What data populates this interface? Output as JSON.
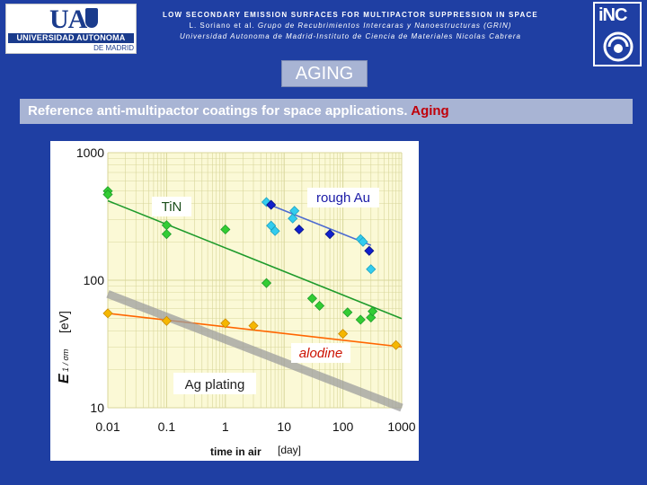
{
  "header": {
    "title_line": "LOW SECONDARY EMISSION SURFACES FOR MULTIPACTOR SUPPRESSION IN SPACE",
    "authors_plain": "L. Soriano et al.",
    "authors_italic": "Grupo de Recubrimientos Intercaras y Nanoestructuras (GRIN)",
    "institutions": "Universidad Autonoma de Madrid-Instituto de Ciencia de Materiales Nicolas Cabrera"
  },
  "logos": {
    "ua_mark": "UA",
    "ua_name": "UNIVERSIDAD AUTONOMA",
    "ua_city": "DE MADRID",
    "inc_mark": "iNC"
  },
  "section_title": "AGING",
  "subtitle": {
    "main": "Reference anti-multipactor coatings for space applications.",
    "accent": "Aging"
  },
  "colors": {
    "background": "#1f3fa3",
    "plot_background": "#fbf9d6",
    "grid": "#d8d69a",
    "tin": "#1f9b2c",
    "tin_marker": "#33cc33",
    "au_marker_light": "#33ccee",
    "au_marker_dark": "#1020cc",
    "au_line": "#4d6bd1",
    "alodine_line": "#ff6600",
    "alodine_marker": "#f5b700",
    "ag_band": "#9e9e9e",
    "alodine_label": "#cc1100",
    "au_label": "#1a1aa6"
  },
  "chart_data": {
    "type": "scatter",
    "x_scale": "log",
    "y_scale": "log",
    "xlim": [
      0.01,
      1000
    ],
    "ylim": [
      10,
      1000
    ],
    "x_ticks": [
      "0.01",
      "0.1",
      "1",
      "10",
      "100",
      "1000"
    ],
    "y_ticks": [
      "10",
      "100",
      "1000"
    ],
    "xlabel": "time in air",
    "xunit": "[day]",
    "ylabel_symbol": "E",
    "ylabel_sub": "1 / σm",
    "ylabel_unit": "[eV]",
    "grid": true,
    "series": [
      {
        "name": "TiN",
        "marker": "diamond",
        "points": [
          [
            0.01,
            500
          ],
          [
            0.01,
            470
          ],
          [
            0.1,
            270
          ],
          [
            0.1,
            230
          ],
          [
            1,
            250
          ],
          [
            5,
            95
          ],
          [
            30,
            72
          ],
          [
            40,
            63
          ],
          [
            120,
            56
          ],
          [
            300,
            51
          ],
          [
            320,
            57
          ],
          [
            200,
            49
          ]
        ],
        "trend": [
          [
            0.01,
            420
          ],
          [
            1000,
            50
          ]
        ]
      },
      {
        "name": "rough Au",
        "marker": "diamond",
        "points": [
          [
            5,
            410
          ],
          [
            6,
            390
          ],
          [
            15,
            350
          ],
          [
            14,
            305
          ],
          [
            18,
            250
          ],
          [
            6,
            268
          ],
          [
            7,
            243
          ],
          [
            60,
            230
          ],
          [
            200,
            210
          ],
          [
            220,
            200
          ],
          [
            280,
            170
          ],
          [
            300,
            122
          ]
        ],
        "trend": [
          [
            5,
            400
          ],
          [
            300,
            188
          ]
        ]
      },
      {
        "name": "alodine",
        "marker": "diamond",
        "points": [
          [
            0.01,
            55
          ],
          [
            0.1,
            48
          ],
          [
            1,
            46
          ],
          [
            3,
            44
          ],
          [
            100,
            38
          ],
          [
            800,
            31
          ]
        ],
        "trend": [
          [
            0.01,
            55
          ],
          [
            1000,
            30
          ]
        ]
      },
      {
        "name": "Ag plating",
        "marker": "none",
        "points": [],
        "trend": [
          [
            0.01,
            78
          ],
          [
            1000,
            10
          ]
        ]
      }
    ]
  }
}
